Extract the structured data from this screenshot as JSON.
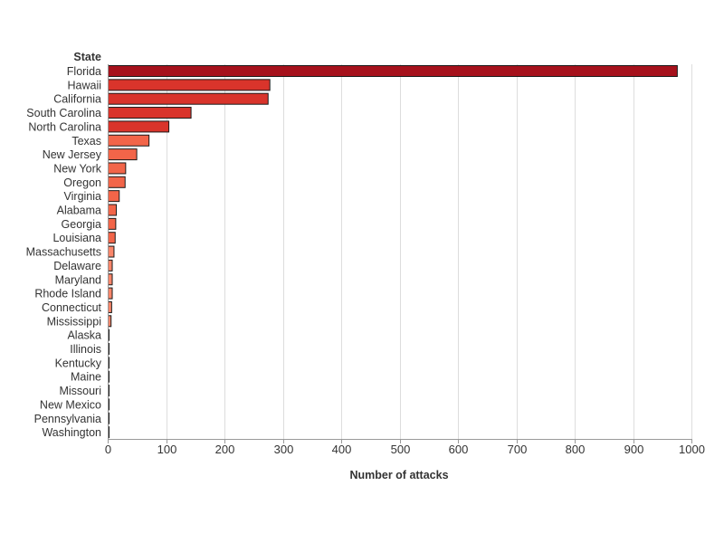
{
  "chart_data": {
    "type": "bar",
    "orientation": "horizontal",
    "title": "",
    "xlabel": "Number of attacks",
    "ylabel": "State",
    "xlim": [
      0,
      1000
    ],
    "xticks": [
      0,
      100,
      200,
      300,
      400,
      500,
      600,
      700,
      800,
      900,
      1000
    ],
    "grid": true,
    "legend": "none",
    "categories": [
      "Florida",
      "Hawaii",
      "California",
      "South Carolina",
      "North Carolina",
      "Texas",
      "New Jersey",
      "New York",
      "Oregon",
      "Virginia",
      "Alabama",
      "Georgia",
      "Louisiana",
      "Massachusetts",
      "Delaware",
      "Maryland",
      "Rhode Island",
      "Connecticut",
      "Mississippi",
      "Alaska",
      "Illinois",
      "Kentucky",
      "Maine",
      "Missouri",
      "New Mexico",
      "Pennsylvania",
      "Washington"
    ],
    "values": [
      975,
      277,
      274,
      142,
      104,
      70,
      49,
      30,
      29,
      19,
      14,
      13,
      12,
      10,
      7,
      7,
      7,
      6,
      5,
      1,
      1,
      1,
      1,
      1,
      1,
      1,
      1
    ],
    "colors": [
      "#a6111c",
      "#d9342b",
      "#d9342b",
      "#d9342b",
      "#d9342b",
      "#f26549",
      "#f26549",
      "#f26549",
      "#f26549",
      "#f26549",
      "#f26549",
      "#f26549",
      "#f26549",
      "#f9866a",
      "#f9866a",
      "#f9866a",
      "#f9866a",
      "#f9866a",
      "#f9866a",
      "#fcb09a",
      "#fcb09a",
      "#fcb09a",
      "#fcb09a",
      "#fcb09a",
      "#fcb09a",
      "#fcb09a",
      "#fcb09a"
    ]
  }
}
